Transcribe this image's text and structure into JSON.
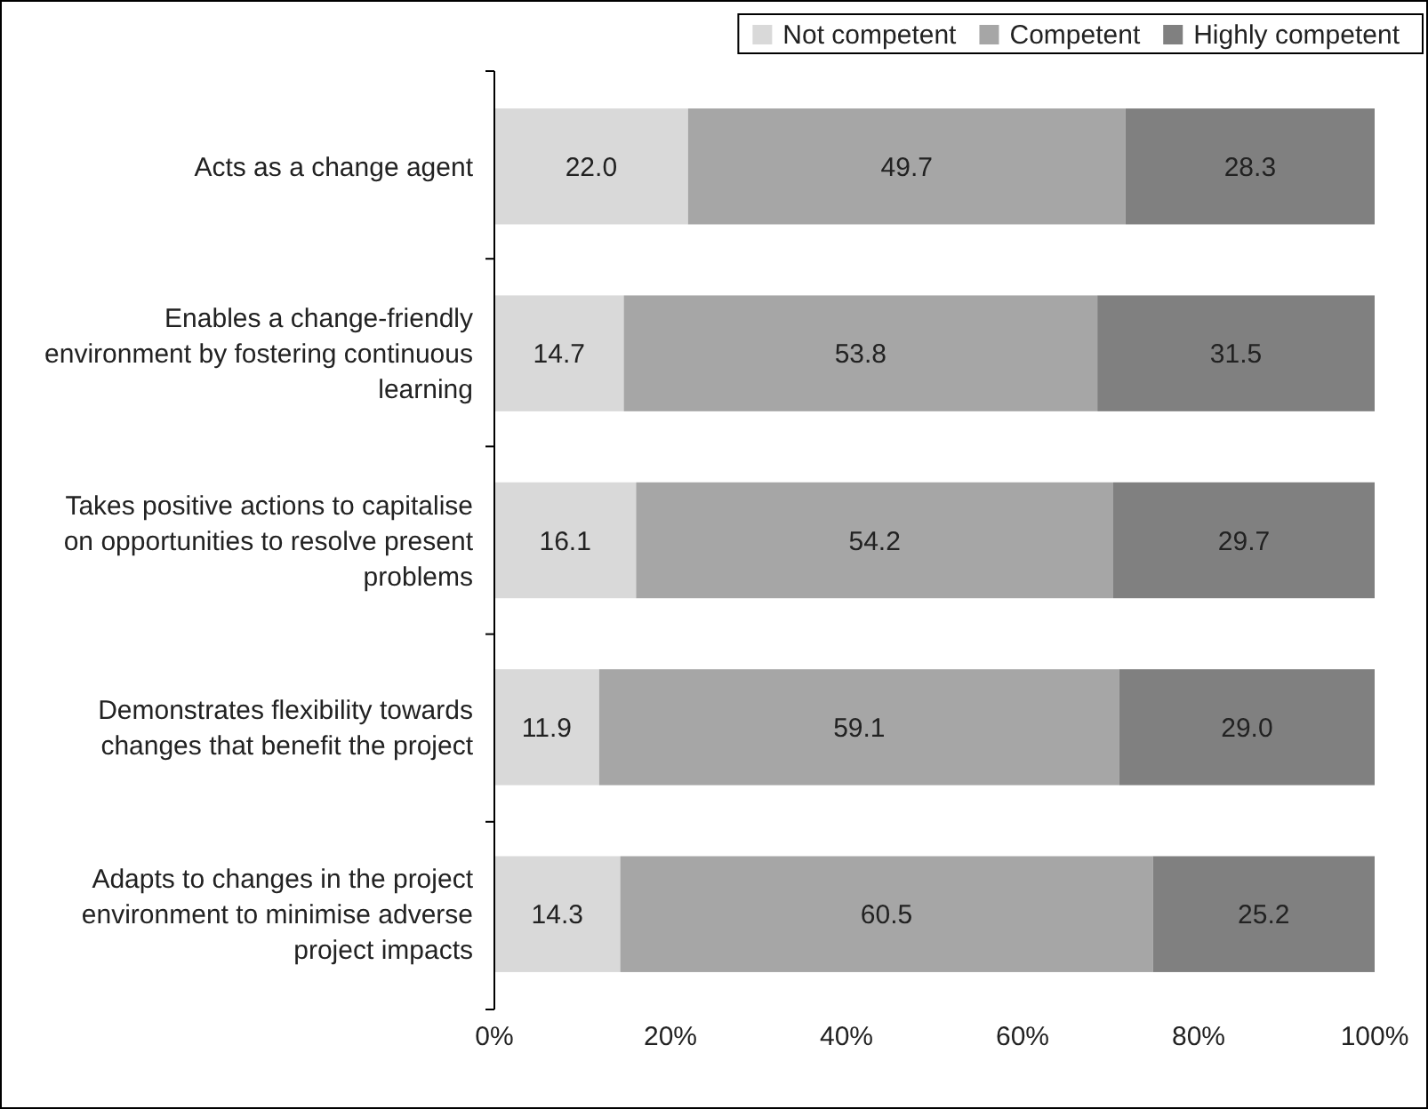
{
  "chart_data": {
    "type": "bar",
    "orientation": "horizontal",
    "stacked": true,
    "categories": [
      "Acts as a change agent",
      "Enables a change-friendly environment by fostering continuous learning",
      "Takes positive actions to capitalise on opportunities to resolve present problems",
      "Demonstrates flexibility towards changes that benefit the project",
      "Adapts to changes in the project environment to minimise adverse project impacts"
    ],
    "series": [
      {
        "name": "Not competent",
        "color": "#d9d9d9",
        "values": [
          22.0,
          14.7,
          16.1,
          11.9,
          14.3
        ],
        "value_labels": [
          "22.0",
          "14.7",
          "16.1",
          "11.9",
          "14.3"
        ]
      },
      {
        "name": "Competent",
        "color": "#a6a6a6",
        "values": [
          49.7,
          53.8,
          54.2,
          59.1,
          60.5
        ],
        "value_labels": [
          "49.7",
          "53.8",
          "54.2",
          "59.1",
          "60.5"
        ]
      },
      {
        "name": "Highly competent",
        "color": "#808080",
        "values": [
          28.3,
          31.5,
          29.7,
          29.0,
          25.2
        ],
        "value_labels": [
          "28.3",
          "31.5",
          "29.7",
          "29.0",
          "25.2"
        ]
      }
    ],
    "xlim": [
      0,
      100
    ],
    "xticks": [
      {
        "value": 0,
        "label": "0%"
      },
      {
        "value": 20,
        "label": "20%"
      },
      {
        "value": 40,
        "label": "40%"
      },
      {
        "value": 60,
        "label": "60%"
      },
      {
        "value": 80,
        "label": "80%"
      },
      {
        "value": 100,
        "label": "100%"
      }
    ],
    "legend": "top right",
    "grid": false
  }
}
